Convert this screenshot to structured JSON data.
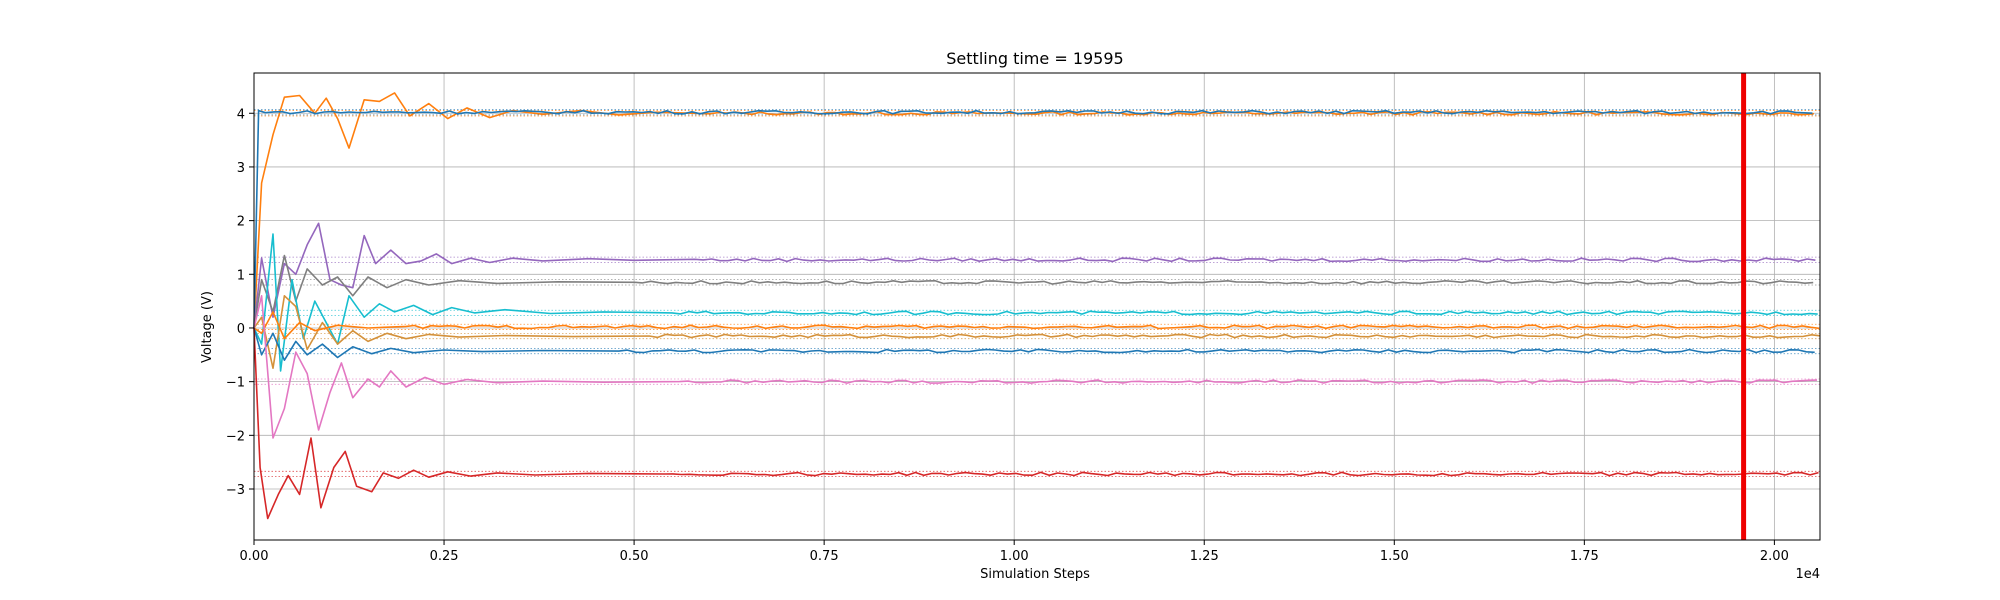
{
  "chart_data": {
    "type": "line",
    "title": "Settling time = 19595",
    "xlabel": "Simulation Steps",
    "ylabel": "Voltage (V)",
    "x_offset_label": "1e4",
    "xlim": [
      0,
      20600
    ],
    "ylim": [
      -3.95,
      4.75
    ],
    "grid": true,
    "x_ticks": [
      0,
      2500,
      5000,
      7500,
      10000,
      12500,
      15000,
      17500,
      20000
    ],
    "x_tick_labels": [
      "0.00",
      "0.25",
      "0.50",
      "0.75",
      "1.00",
      "1.25",
      "1.50",
      "1.75",
      "2.00"
    ],
    "y_ticks": [
      -3,
      -2,
      -1,
      0,
      1,
      2,
      3,
      4
    ],
    "y_tick_labels": [
      "−3",
      "−2",
      "−1",
      "0",
      "1",
      "2",
      "3",
      "4"
    ],
    "settling_marker": {
      "x": 19595,
      "color": "#ee0000"
    },
    "tolerance_band": 0.05,
    "series": [
      {
        "color": "#ff7f0e",
        "final": 4.0,
        "start": 0.0,
        "early": [
          [
            100,
            2.7
          ],
          [
            250,
            3.6
          ],
          [
            400,
            4.3
          ],
          [
            600,
            4.33
          ],
          [
            800,
            4.0
          ],
          [
            950,
            4.28
          ],
          [
            1100,
            3.9
          ],
          [
            1250,
            3.35
          ],
          [
            1450,
            4.25
          ],
          [
            1650,
            4.22
          ],
          [
            1850,
            4.38
          ],
          [
            2050,
            3.95
          ],
          [
            2300,
            4.18
          ],
          [
            2550,
            3.9
          ],
          [
            2800,
            4.1
          ],
          [
            3100,
            3.92
          ],
          [
            3400,
            4.05
          ],
          [
            3800,
            3.98
          ],
          [
            4300,
            4.05
          ],
          [
            4800,
            3.97
          ],
          [
            5300,
            4.02
          ],
          [
            6000,
            3.99
          ]
        ]
      },
      {
        "color": "#1f77b4",
        "final": 4.02,
        "start": 0.0,
        "early": [
          [
            60,
            4.05
          ],
          [
            150,
            4.01
          ]
        ]
      },
      {
        "color": "#9467bd",
        "final": 1.27,
        "start": 0.0,
        "early": [
          [
            100,
            1.3
          ],
          [
            250,
            0.2
          ],
          [
            400,
            1.2
          ],
          [
            550,
            1.0
          ],
          [
            700,
            1.55
          ],
          [
            850,
            1.95
          ],
          [
            1000,
            0.9
          ],
          [
            1150,
            0.8
          ],
          [
            1300,
            0.75
          ],
          [
            1450,
            1.72
          ],
          [
            1600,
            1.2
          ],
          [
            1800,
            1.45
          ],
          [
            2000,
            1.2
          ],
          [
            2200,
            1.25
          ],
          [
            2400,
            1.38
          ],
          [
            2600,
            1.2
          ],
          [
            2850,
            1.3
          ],
          [
            3100,
            1.22
          ],
          [
            3400,
            1.3
          ],
          [
            3800,
            1.25
          ],
          [
            4400,
            1.29
          ],
          [
            5000,
            1.26
          ],
          [
            5800,
            1.28
          ]
        ]
      },
      {
        "color": "#7f7f7f",
        "final": 0.85,
        "start": 0.0,
        "early": [
          [
            100,
            0.9
          ],
          [
            250,
            0.3
          ],
          [
            400,
            1.35
          ],
          [
            550,
            0.5
          ],
          [
            700,
            1.1
          ],
          [
            900,
            0.8
          ],
          [
            1100,
            0.95
          ],
          [
            1300,
            0.6
          ],
          [
            1500,
            0.95
          ],
          [
            1750,
            0.75
          ],
          [
            2000,
            0.9
          ],
          [
            2300,
            0.8
          ],
          [
            2700,
            0.88
          ],
          [
            3200,
            0.83
          ],
          [
            4000,
            0.86
          ],
          [
            5000,
            0.85
          ]
        ]
      },
      {
        "color": "#17becf",
        "final": 0.28,
        "start": 0.0,
        "early": [
          [
            100,
            -0.3
          ],
          [
            250,
            1.75
          ],
          [
            350,
            -0.8
          ],
          [
            500,
            0.9
          ],
          [
            650,
            -0.2
          ],
          [
            800,
            0.5
          ],
          [
            950,
            0.1
          ],
          [
            1100,
            -0.3
          ],
          [
            1250,
            0.6
          ],
          [
            1450,
            0.2
          ],
          [
            1650,
            0.45
          ],
          [
            1850,
            0.3
          ],
          [
            2100,
            0.42
          ],
          [
            2350,
            0.25
          ],
          [
            2600,
            0.38
          ],
          [
            2900,
            0.28
          ],
          [
            3300,
            0.34
          ],
          [
            3900,
            0.27
          ],
          [
            4600,
            0.3
          ],
          [
            5500,
            0.28
          ]
        ]
      },
      {
        "color": "#d4913a",
        "final": -0.15,
        "start": 0.0,
        "early": [
          [
            100,
            0.2
          ],
          [
            250,
            -0.75
          ],
          [
            400,
            0.6
          ],
          [
            550,
            0.4
          ],
          [
            700,
            -0.4
          ],
          [
            900,
            0.1
          ],
          [
            1100,
            -0.3
          ],
          [
            1300,
            -0.05
          ],
          [
            1500,
            -0.25
          ],
          [
            1750,
            -0.1
          ],
          [
            2000,
            -0.2
          ],
          [
            2300,
            -0.12
          ],
          [
            2700,
            -0.17
          ],
          [
            3300,
            -0.14
          ],
          [
            4200,
            -0.16
          ],
          [
            5200,
            -0.15
          ]
        ]
      },
      {
        "color": "#ff7f0e",
        "final": 0.02,
        "start": 0.0,
        "early": [
          [
            100,
            -0.1
          ],
          [
            250,
            0.3
          ],
          [
            400,
            -0.2
          ],
          [
            600,
            0.1
          ],
          [
            800,
            -0.05
          ],
          [
            1100,
            0.05
          ],
          [
            1500,
            0.0
          ],
          [
            2000,
            0.03
          ]
        ]
      },
      {
        "color": "#1f77b4",
        "final": -0.43,
        "start": 0.0,
        "early": [
          [
            100,
            -0.5
          ],
          [
            250,
            -0.1
          ],
          [
            400,
            -0.6
          ],
          [
            550,
            -0.25
          ],
          [
            700,
            -0.5
          ],
          [
            900,
            -0.3
          ],
          [
            1100,
            -0.55
          ],
          [
            1300,
            -0.35
          ],
          [
            1550,
            -0.48
          ],
          [
            1800,
            -0.38
          ],
          [
            2100,
            -0.46
          ],
          [
            2500,
            -0.41
          ],
          [
            3000,
            -0.44
          ],
          [
            3800,
            -0.42
          ],
          [
            4800,
            -0.43
          ]
        ]
      },
      {
        "color": "#e377c2",
        "final": -1.0,
        "start": 0.0,
        "early": [
          [
            100,
            0.6
          ],
          [
            250,
            -2.05
          ],
          [
            400,
            -1.5
          ],
          [
            550,
            -0.45
          ],
          [
            700,
            -0.85
          ],
          [
            850,
            -1.9
          ],
          [
            1000,
            -1.2
          ],
          [
            1150,
            -0.65
          ],
          [
            1300,
            -1.3
          ],
          [
            1500,
            -0.95
          ],
          [
            1650,
            -1.1
          ],
          [
            1800,
            -0.8
          ],
          [
            2000,
            -1.1
          ],
          [
            2250,
            -0.92
          ],
          [
            2500,
            -1.05
          ],
          [
            2800,
            -0.96
          ],
          [
            3200,
            -1.02
          ],
          [
            3800,
            -0.99
          ],
          [
            4600,
            -1.01
          ],
          [
            5600,
            -1.0
          ]
        ]
      },
      {
        "color": "#d62728",
        "final": -2.72,
        "start": 0.0,
        "early": [
          [
            80,
            -2.6
          ],
          [
            180,
            -3.55
          ],
          [
            320,
            -3.1
          ],
          [
            450,
            -2.75
          ],
          [
            600,
            -3.1
          ],
          [
            750,
            -2.05
          ],
          [
            880,
            -3.35
          ],
          [
            1050,
            -2.6
          ],
          [
            1200,
            -2.3
          ],
          [
            1350,
            -2.95
          ],
          [
            1550,
            -3.05
          ],
          [
            1700,
            -2.7
          ],
          [
            1900,
            -2.8
          ],
          [
            2100,
            -2.65
          ],
          [
            2300,
            -2.78
          ],
          [
            2550,
            -2.68
          ],
          [
            2850,
            -2.76
          ],
          [
            3200,
            -2.7
          ],
          [
            3700,
            -2.74
          ],
          [
            4400,
            -2.71
          ],
          [
            5400,
            -2.72
          ]
        ]
      }
    ]
  }
}
